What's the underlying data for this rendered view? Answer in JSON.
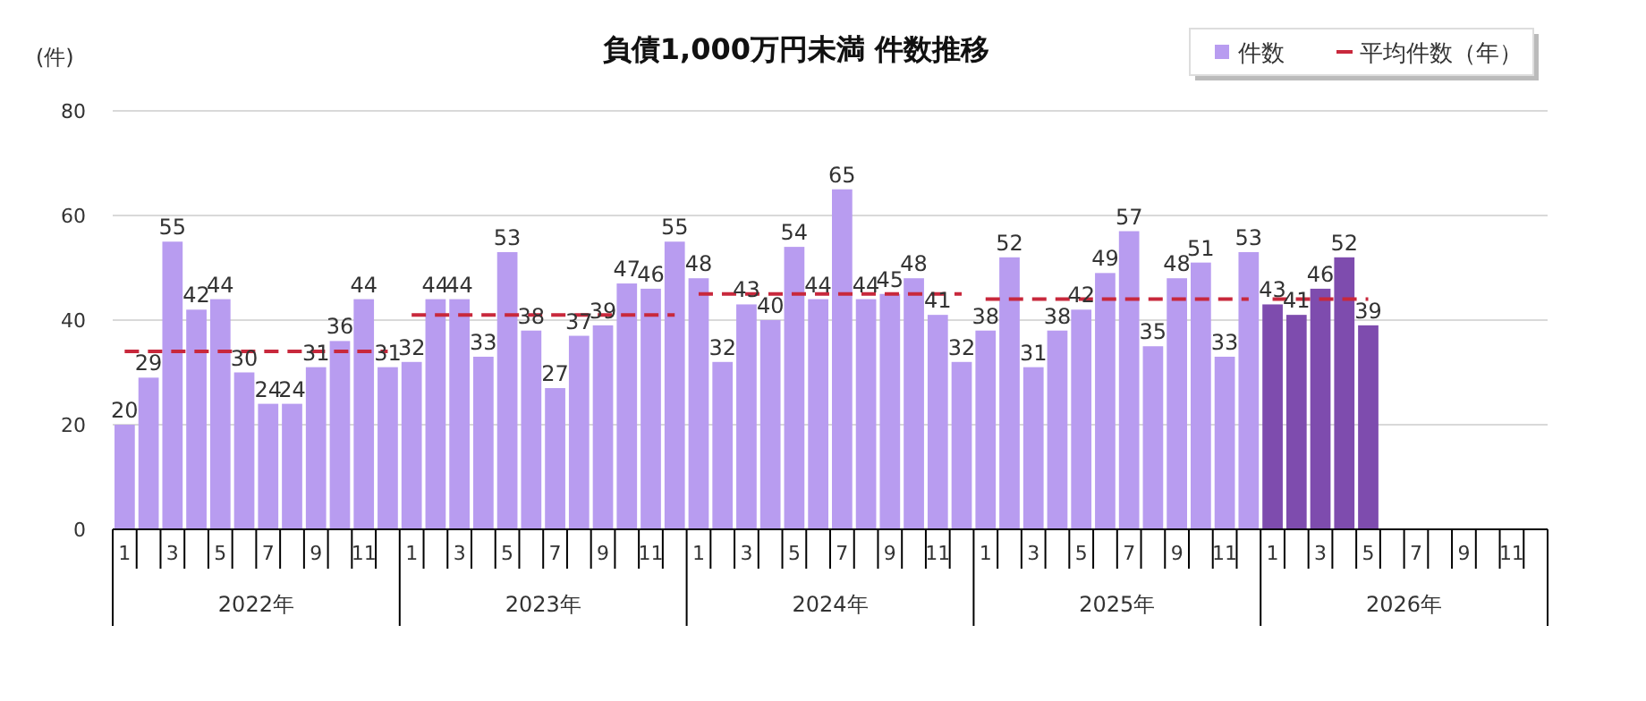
{
  "chart_data": {
    "type": "bar",
    "title": "負債1,000万円未満  件数推移",
    "ylabel": "(件)",
    "categories": [
      "1",
      null,
      "3",
      null,
      "5",
      null,
      "7",
      null,
      "9",
      null,
      "11",
      null,
      "1",
      null,
      "3",
      null,
      "5",
      null,
      "7",
      null,
      "9",
      null,
      "11",
      null,
      "1",
      null,
      "3",
      null,
      "5",
      null,
      "7",
      null,
      "9",
      null,
      "11",
      null,
      "1",
      null,
      "3",
      null,
      "5",
      null,
      "7",
      null,
      "9",
      null,
      "11",
      null,
      "1",
      null,
      "3",
      null,
      "5",
      null,
      "7",
      null,
      "9",
      null,
      "11",
      null
    ],
    "series": [
      {
        "name": "件数",
        "values": [
          20,
          29,
          55,
          42,
          44,
          30,
          24,
          24,
          31,
          36,
          44,
          31,
          32,
          44,
          44,
          33,
          53,
          38,
          27,
          37,
          39,
          47,
          46,
          55,
          48,
          32,
          43,
          40,
          54,
          44,
          65,
          44,
          45,
          48,
          41,
          32,
          38,
          52,
          31,
          38,
          42,
          49,
          57,
          35,
          48,
          51,
          33,
          53,
          43,
          41,
          46,
          52,
          39,
          null,
          null,
          null,
          null,
          null,
          null,
          null
        ],
        "value_labels": [
          "20",
          "29",
          "55",
          "42",
          "44",
          "30",
          "24",
          "24",
          "31",
          "36",
          "44",
          "31",
          "32",
          "44",
          "44",
          "33",
          "53",
          "38",
          "27",
          "37",
          "39",
          "47",
          "46",
          "55",
          "48",
          "32",
          "43",
          "40",
          "54",
          "44",
          "65",
          "44",
          "45",
          "48",
          "41",
          "32",
          "38",
          "52",
          "31",
          "38",
          "42",
          "49",
          "57",
          "35",
          "48",
          "51",
          "33",
          "53",
          "43",
          "41",
          "46",
          "52",
          "39",
          null,
          null,
          null,
          null,
          null,
          null,
          null
        ],
        "colors": [
          "#b89cf0",
          "#b89cf0",
          "#b89cf0",
          "#b89cf0",
          "#b89cf0",
          "#b89cf0",
          "#b89cf0",
          "#b89cf0",
          "#b89cf0",
          "#b89cf0",
          "#b89cf0",
          "#b89cf0",
          "#b89cf0",
          "#b89cf0",
          "#b89cf0",
          "#b89cf0",
          "#b89cf0",
          "#b89cf0",
          "#b89cf0",
          "#b89cf0",
          "#b89cf0",
          "#b89cf0",
          "#b89cf0",
          "#b89cf0",
          "#b89cf0",
          "#b89cf0",
          "#b89cf0",
          "#b89cf0",
          "#b89cf0",
          "#b89cf0",
          "#b89cf0",
          "#b89cf0",
          "#b89cf0",
          "#b89cf0",
          "#b89cf0",
          "#b89cf0",
          "#b89cf0",
          "#b89cf0",
          "#b89cf0",
          "#b89cf0",
          "#b89cf0",
          "#b89cf0",
          "#b89cf0",
          "#b89cf0",
          "#b89cf0",
          "#b89cf0",
          "#b89cf0",
          "#b89cf0",
          "#7e4cae",
          "#7e4cae",
          "#7e4cae",
          "#7e4cae",
          "#7e4cae",
          null,
          null,
          null,
          null,
          null,
          null,
          null
        ],
        "color": "#b89cf0"
      },
      {
        "name": "平均件数（年）",
        "type": "line",
        "color": "#c8283c",
        "line_style": "dashed",
        "marker": "none",
        "values": [
          34,
          34,
          34,
          34,
          34,
          34,
          34,
          34,
          34,
          34,
          34,
          34,
          41,
          41,
          41,
          41,
          41,
          41,
          41,
          41,
          41,
          41,
          41,
          41,
          45,
          45,
          45,
          45,
          45,
          45,
          45,
          45,
          45,
          45,
          45,
          45,
          44,
          44,
          44,
          44,
          44,
          44,
          44,
          44,
          44,
          44,
          44,
          44,
          44,
          44,
          44,
          44,
          44,
          null,
          null,
          null,
          null,
          null,
          null,
          null
        ]
      }
    ],
    "ylim": [
      0,
      80
    ],
    "yticks": [
      0,
      20,
      40,
      60,
      80
    ],
    "grid": "y",
    "legend": "top right",
    "annotations": [
      "2022年",
      "2023年",
      "2024年",
      "2025年",
      "2026年"
    ]
  }
}
